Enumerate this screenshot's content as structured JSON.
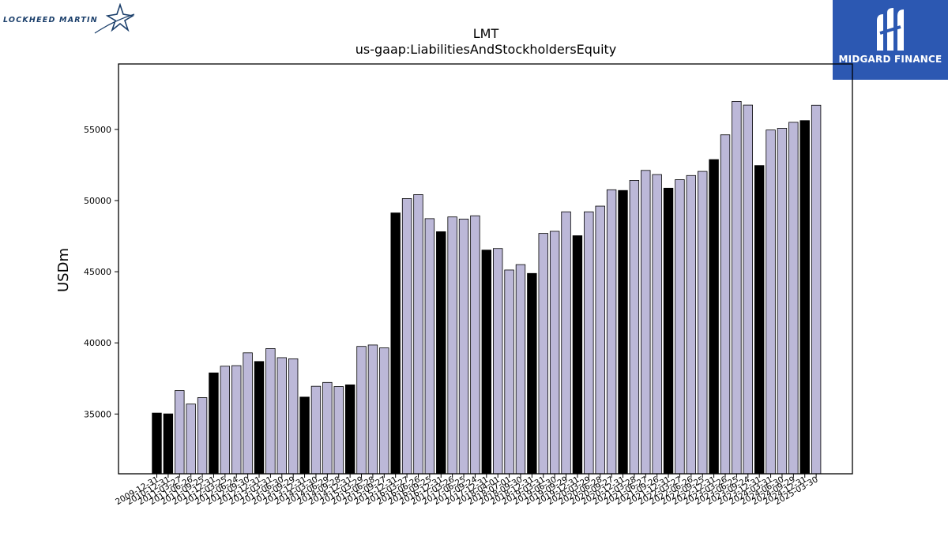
{
  "logos": {
    "left_brand": "LOCKHEED MARTIN",
    "right_brand": "MIDGARD FINANCE"
  },
  "colors": {
    "bar_light": "#bcb8d8",
    "bar_dark": "#000000",
    "bar_edge": "#000000",
    "right_banner": "#2c58b2",
    "left_brand": "#1b3f6b"
  },
  "chart_data": {
    "type": "bar",
    "title": "LMT",
    "subtitle": "us-gaap:LiabilitiesAndStockholdersEquity",
    "xlabel": "",
    "ylabel": "USDm",
    "ylim": [
      30800,
      59600
    ],
    "yticks": [
      35000,
      40000,
      45000,
      50000,
      55000
    ],
    "grid": false,
    "legend": "none",
    "categories": [
      "2009-12-31",
      "2010-12-31",
      "2011-03-27",
      "2011-06-26",
      "2011-09-25",
      "2011-12-31",
      "2012-03-25",
      "2012-06-24",
      "2012-09-30",
      "2012-12-31",
      "2013-03-31",
      "2013-06-30",
      "2013-09-29",
      "2013-12-31",
      "2014-03-30",
      "2014-06-29",
      "2014-09-28",
      "2014-12-31",
      "2015-03-29",
      "2015-06-28",
      "2015-09-27",
      "2015-12-31",
      "2016-03-27",
      "2016-06-26",
      "2016-09-25",
      "2016-12-31",
      "2017-03-26",
      "2017-06-25",
      "2017-09-24",
      "2017-12-31",
      "2018-04-01",
      "2018-07-01",
      "2018-09-30",
      "2018-12-31",
      "2019-03-31",
      "2019-06-30",
      "2019-09-29",
      "2019-12-31",
      "2020-03-29",
      "2020-06-28",
      "2020-09-27",
      "2020-12-31",
      "2021-03-28",
      "2021-06-27",
      "2021-09-26",
      "2021-12-31",
      "2022-03-27",
      "2022-06-26",
      "2022-09-25",
      "2022-12-31",
      "2023-03-26",
      "2023-06-25",
      "2023-09-24",
      "2023-12-31",
      "2024-03-31",
      "2024-06-30",
      "2024-09-29",
      "2024-12-31",
      "2025-03-30"
    ],
    "tick_labels": [
      "2009-12-31",
      "2010-12-31",
      "2011-03-27",
      "2011-06-26",
      "2011-09-25",
      "2011-12-31",
      "2012-03-25",
      "2012-06-24",
      "2012-09-30",
      "2012-12-31",
      "2013-03-31",
      "2013-06-30",
      "2013-09-29",
      "2013-12-31",
      "2014-03-30",
      "2014-06-29",
      "2014-09-28",
      "2014-12-31",
      "2015-03-29",
      "2015-06-28",
      "2015-09-27",
      "2015-12-31",
      "2016-03-27",
      "2016-06-26",
      "2016-09-25",
      "2016-12-31",
      "2017-03-26",
      "2017-06-25",
      "2017-09-24",
      "2017-12-31",
      "2018-04-01",
      "2018-07-01",
      "2018-09-30",
      "2018-12-31",
      "2019-03-31",
      "2019-06-30",
      "2019-09-29",
      "2019-12-31",
      "2020-03-29",
      "2020-06-28",
      "2020-09-27",
      "2020-12-31",
      "2021-03-28",
      "2021-06-27",
      "2021-09-26",
      "2021-12-31",
      "2022-03-27",
      "2022-06-26",
      "2022-09-25",
      "2022-12-31",
      "2023-03-26",
      "2023-06-25",
      "2023-09-24",
      "2023-12-31",
      "2024-03-31",
      "2024-06-30",
      "2024-09-29",
      "2024-12-31",
      "2025-03-30"
    ],
    "values": [
      35067,
      35010,
      36650,
      35700,
      36150,
      37890,
      38360,
      38400,
      39300,
      38690,
      39600,
      38960,
      38880,
      36190,
      36950,
      37220,
      36930,
      37050,
      39750,
      39850,
      39650,
      49130,
      50140,
      50420,
      48730,
      47810,
      48850,
      48700,
      48930,
      46520,
      46630,
      45120,
      45500,
      44880,
      47690,
      47840,
      49210,
      47530,
      49210,
      49610,
      50760,
      50710,
      51420,
      52120,
      51830,
      50870,
      51470,
      51760,
      52050,
      52880,
      54620,
      56970,
      56710,
      52460,
      54960,
      55080,
      55500,
      55620,
      56700
    ],
    "year_end_flags": [
      1,
      1,
      0,
      0,
      0,
      1,
      0,
      0,
      0,
      1,
      0,
      0,
      0,
      1,
      0,
      0,
      0,
      1,
      0,
      0,
      0,
      1,
      0,
      0,
      0,
      1,
      0,
      0,
      0,
      1,
      0,
      0,
      0,
      1,
      0,
      0,
      0,
      1,
      0,
      0,
      0,
      1,
      0,
      0,
      0,
      1,
      0,
      0,
      0,
      1,
      0,
      0,
      0,
      1,
      0,
      0,
      0,
      1,
      0
    ]
  }
}
